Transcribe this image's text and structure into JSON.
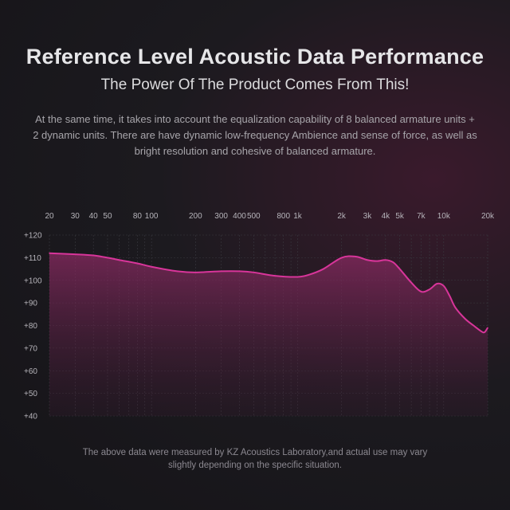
{
  "header": {
    "title": "Reference Level Acoustic Data Performance",
    "subtitle": "The Power Of The Product Comes From This!",
    "description": "At the same time, it takes into account the equalization capability of 8 balanced armature units + 2 dynamic units. There are have dynamic low-frequency Ambience and sense of force, as well as bright resolution and cohesive of balanced armature."
  },
  "footer": {
    "note": "The above data were measured by KZ Acoustics Laboratory,and actual use may vary slightly depending on the specific situation."
  },
  "colors": {
    "line": "#d8359a",
    "fill": "#6b1f4c",
    "grid": "#3a3a40"
  },
  "chart_data": {
    "type": "line",
    "title": "",
    "xlabel": "",
    "ylabel": "",
    "x_scale": "log",
    "xlim": [
      20,
      20000
    ],
    "ylim": [
      40,
      120
    ],
    "grid": true,
    "x_ticks": [
      {
        "value": 20,
        "label": "20"
      },
      {
        "value": 30,
        "label": "30"
      },
      {
        "value": 40,
        "label": "40"
      },
      {
        "value": 50,
        "label": "50"
      },
      {
        "value": 80,
        "label": "80"
      },
      {
        "value": 100,
        "label": "100"
      },
      {
        "value": 200,
        "label": "200"
      },
      {
        "value": 300,
        "label": "300"
      },
      {
        "value": 400,
        "label": "400"
      },
      {
        "value": 500,
        "label": "500"
      },
      {
        "value": 800,
        "label": "800"
      },
      {
        "value": 1000,
        "label": "1k"
      },
      {
        "value": 2000,
        "label": "2k"
      },
      {
        "value": 3000,
        "label": "3k"
      },
      {
        "value": 4000,
        "label": "4k"
      },
      {
        "value": 5000,
        "label": "5k"
      },
      {
        "value": 7000,
        "label": "7k"
      },
      {
        "value": 10000,
        "label": "10k"
      },
      {
        "value": 20000,
        "label": "20k"
      }
    ],
    "y_ticks": [
      {
        "value": 120,
        "label": "+120"
      },
      {
        "value": 110,
        "label": "+110"
      },
      {
        "value": 100,
        "label": "+100"
      },
      {
        "value": 90,
        "label": "+90"
      },
      {
        "value": 80,
        "label": "+80"
      },
      {
        "value": 70,
        "label": "+70"
      },
      {
        "value": 60,
        "label": "+60"
      },
      {
        "value": 50,
        "label": "+50"
      },
      {
        "value": 40,
        "label": "+40"
      }
    ],
    "series": [
      {
        "x": [
          20,
          30,
          40,
          50,
          60,
          80,
          100,
          150,
          200,
          300,
          400,
          500,
          700,
          1000,
          1200,
          1500,
          2000,
          2500,
          3000,
          3500,
          4000,
          4500,
          5000,
          6000,
          7000,
          8000,
          9000,
          10000,
          11000,
          12000,
          14000,
          16000,
          18000,
          19000,
          20000
        ],
        "y": [
          112,
          111.5,
          111,
          110,
          109,
          107.5,
          106,
          104,
          103.5,
          104,
          104,
          103.5,
          102,
          101.5,
          102.5,
          105,
          110,
          110.5,
          109,
          108.5,
          109,
          108,
          105,
          99,
          95,
          96,
          98.5,
          97.5,
          93,
          88,
          83,
          80,
          77.5,
          77,
          79
        ]
      }
    ]
  }
}
